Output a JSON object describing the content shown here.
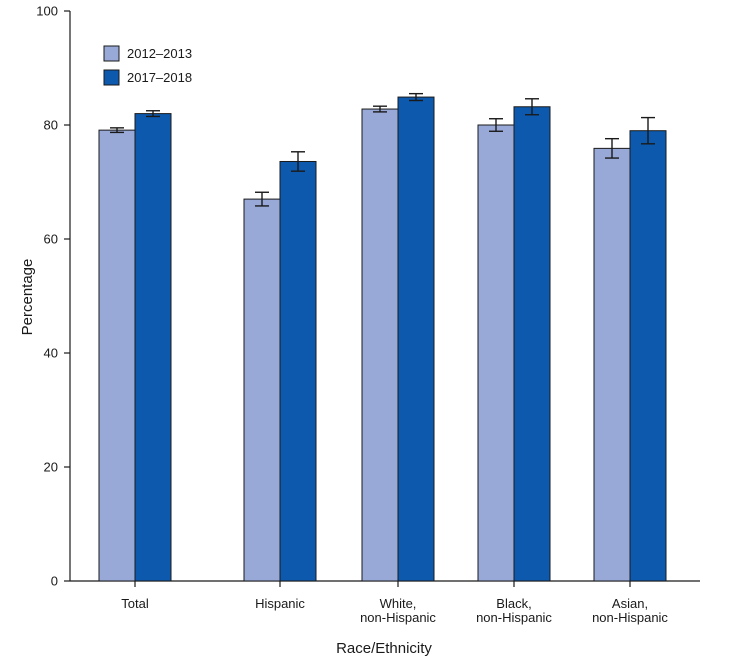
{
  "chart_data": {
    "type": "bar",
    "title": "",
    "xlabel": "Race/Ethnicity",
    "ylabel": "Percentage",
    "ylim": [
      0,
      100
    ],
    "yticks": [
      0,
      20,
      40,
      60,
      80,
      100
    ],
    "grid": false,
    "legend_position": "top-left",
    "categories": [
      [
        "Total"
      ],
      [
        "Hispanic"
      ],
      [
        "White,",
        "non-Hispanic"
      ],
      [
        "Black,",
        "non-Hispanic"
      ],
      [
        "Asian,",
        "non-Hispanic"
      ]
    ],
    "series": [
      {
        "name": "2012–2013",
        "color": "#98a9d8",
        "values": [
          79.1,
          67.0,
          82.8,
          80.0,
          75.9
        ],
        "err_low": [
          78.7,
          65.8,
          82.3,
          78.9,
          74.2
        ],
        "err_high": [
          79.5,
          68.2,
          83.3,
          81.1,
          77.6
        ]
      },
      {
        "name": "2017–2018",
        "color": "#0c59ad",
        "values": [
          82.0,
          73.6,
          84.9,
          83.2,
          79.0
        ],
        "err_low": [
          81.5,
          71.9,
          84.3,
          81.8,
          76.7
        ],
        "err_high": [
          82.5,
          75.3,
          85.5,
          84.6,
          81.3
        ]
      }
    ]
  }
}
